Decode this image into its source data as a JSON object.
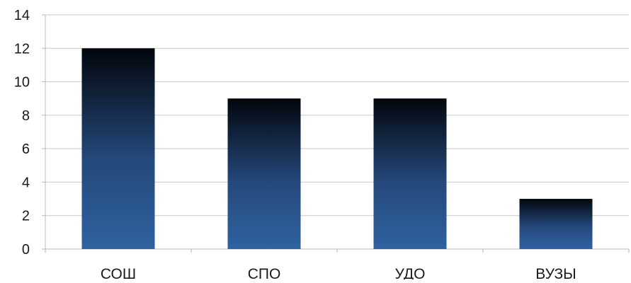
{
  "chart_data": {
    "type": "bar",
    "title": "",
    "xlabel": "",
    "ylabel": "",
    "categories": [
      "СОШ",
      "СПО",
      "УДО",
      "ВУЗЫ"
    ],
    "values": [
      12,
      9,
      9,
      3
    ],
    "ylim": [
      0,
      14
    ],
    "yticks": [
      0,
      2,
      4,
      6,
      8,
      10,
      12,
      14
    ],
    "grid": true,
    "legend": "none",
    "colors": {
      "bar_top": "#02060c",
      "bar_bottom": "#2f62a0",
      "grid": "#c8c8c8",
      "axis": "#b8b8b8"
    }
  }
}
